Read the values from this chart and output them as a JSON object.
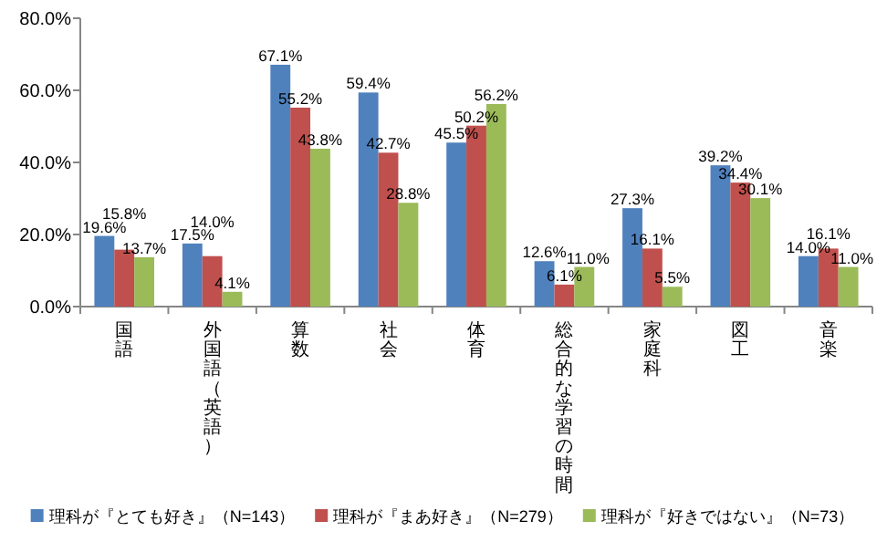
{
  "chart_data": {
    "type": "bar",
    "categories": [
      "国語",
      "外国語（英語）",
      "算数",
      "社会",
      "体育",
      "総合的な学習の時間",
      "家庭科",
      "図工",
      "音楽"
    ],
    "series": [
      {
        "name": "理科が『とても好き』（N=143）",
        "color": "#4f81bd",
        "values": [
          19.6,
          17.5,
          67.1,
          59.4,
          45.5,
          12.6,
          27.3,
          39.2,
          14.0
        ],
        "value_labels": [
          "19.6%",
          "17.5%",
          "67.1%",
          "59.4%",
          "45.5%",
          "12.6%",
          "27.3%",
          "39.2%",
          "14.0%"
        ]
      },
      {
        "name": "理科が『まあ好き』（N=279）",
        "color": "#c0504d",
        "values": [
          15.8,
          14.0,
          55.2,
          42.7,
          50.2,
          6.1,
          16.1,
          34.4,
          16.1
        ],
        "value_labels": [
          "15.8%",
          "14.0%",
          "55.2%",
          "42.7%",
          "50.2%",
          "6.1%",
          "16.1%",
          "34.4%",
          "16.1%"
        ]
      },
      {
        "name": "理科が『好きではない』（N=73）",
        "color": "#9bbb59",
        "values": [
          13.7,
          4.1,
          43.8,
          28.8,
          56.2,
          11.0,
          5.5,
          30.1,
          11.0
        ],
        "value_labels": [
          "13.7%",
          "4.1%",
          "43.8%",
          "28.8%",
          "56.2%",
          "11.0%",
          "5.5%",
          "30.1%",
          "11.0%"
        ]
      }
    ],
    "ylim": [
      0,
      80
    ],
    "yticks": [
      {
        "value": 0,
        "label": "0.0%"
      },
      {
        "value": 20,
        "label": "20.0%"
      },
      {
        "value": 40,
        "label": "40.0%"
      },
      {
        "value": 60,
        "label": "60.0%"
      },
      {
        "value": 80,
        "label": "80.0%"
      }
    ],
    "legend": "bottom"
  }
}
